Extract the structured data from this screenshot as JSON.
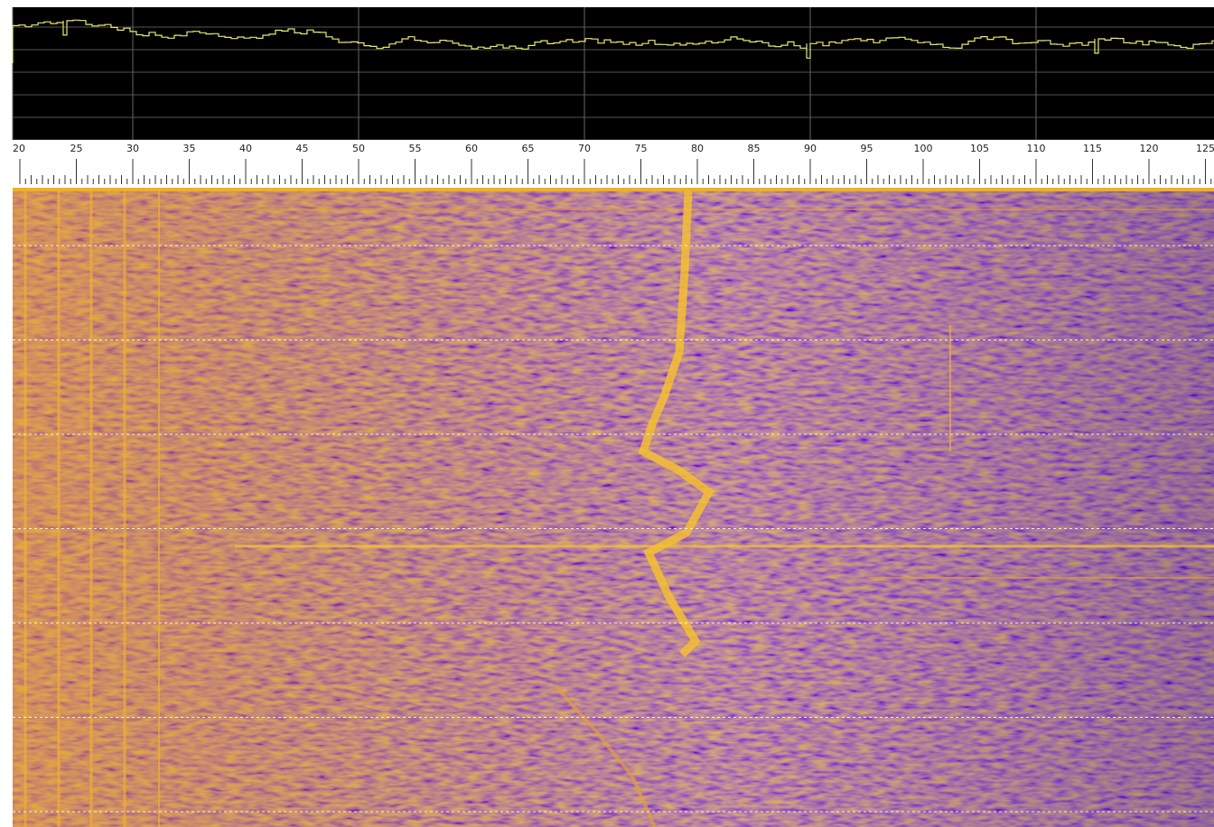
{
  "frequency_scale": {
    "labels": [
      "20",
      "25",
      "30",
      "35",
      "40",
      "45",
      "50",
      "55",
      "60",
      "65",
      "70",
      "75",
      "80",
      "85",
      "90",
      "95",
      "100",
      "105",
      "110",
      "115",
      "120",
      "125"
    ]
  }
}
